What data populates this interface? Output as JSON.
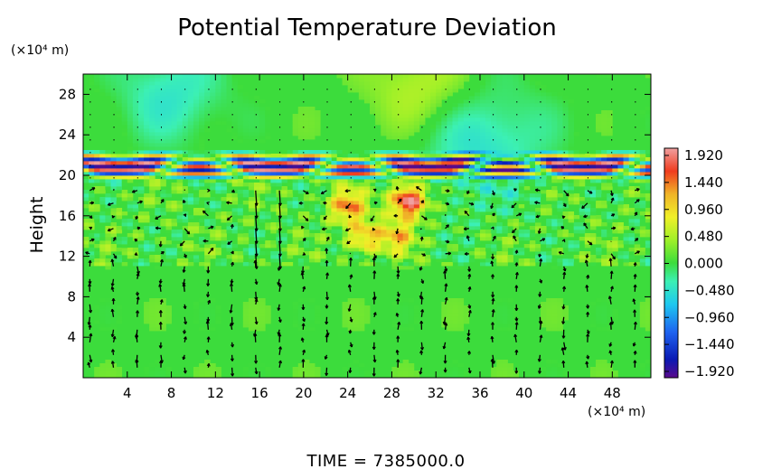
{
  "chart_data": {
    "type": "heatmap",
    "title": "Potential Temperature Deviation",
    "ylabel": "Height",
    "x_unit_label": "(×10⁴ m)",
    "y_unit_label": "(×10⁴ m)",
    "x_ticks": [
      4,
      8,
      12,
      16,
      20,
      24,
      28,
      32,
      36,
      40,
      44,
      48
    ],
    "y_ticks": [
      4,
      8,
      12,
      16,
      20,
      24,
      28
    ],
    "xlim": [
      0,
      51.5
    ],
    "ylim": [
      0,
      30
    ],
    "colorbar": {
      "ticks": [
        "1.920",
        "1.440",
        "0.960",
        "0.480",
        "0.000",
        "−0.480",
        "−0.960",
        "−1.440",
        "−1.920"
      ],
      "range": [
        -1.92,
        1.92
      ]
    },
    "field_description": {
      "background_value": 0.1,
      "features": [
        {
          "name": "tropopause-band",
          "y_range": [
            19.5,
            22.5
          ],
          "values": "alternating −1.9 to 1.9"
        },
        {
          "name": "upper-cool-patch",
          "x": 8,
          "y": 28,
          "value": -0.5
        },
        {
          "name": "upper-warm-patch",
          "x": 31,
          "y": 28.5,
          "value": 0.5
        },
        {
          "name": "upper-cool-region",
          "x": 36,
          "y": 23.5,
          "value": -0.6
        },
        {
          "name": "warm-cell",
          "x": 29.5,
          "y": 17.5,
          "value": 1.9
        },
        {
          "name": "warm-cell",
          "x": 24,
          "y": 17,
          "value": 1.2
        },
        {
          "name": "warm-cell",
          "x": 25.5,
          "y": 14,
          "value": 1.0
        },
        {
          "name": "warm-cell",
          "x": 28.5,
          "y": 14,
          "value": 0.9
        }
      ]
    },
    "vectors": "wind arrows on a regular grid; strong downward arrows near x=16–17 between y=12 and y=19, mixed directions in y=12–19 band, mostly vertical arrows below y=11"
  },
  "time_label": "TIME  =  7385000.0"
}
